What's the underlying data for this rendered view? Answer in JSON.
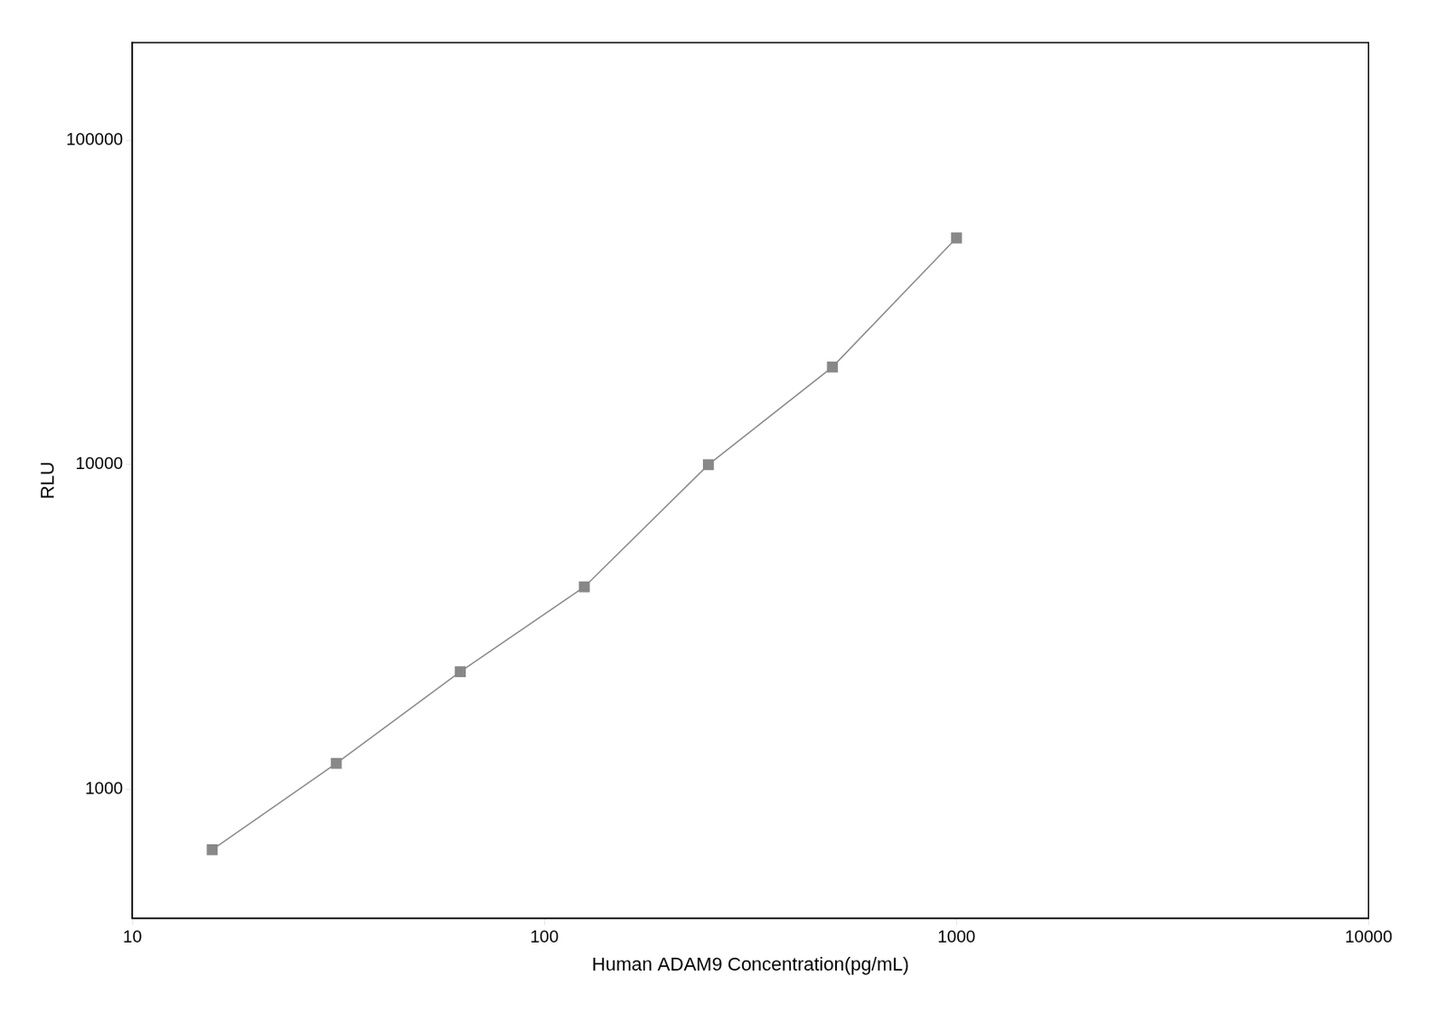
{
  "chart_data": {
    "type": "line",
    "x": [
      15.625,
      31.25,
      62.5,
      125,
      250,
      500,
      1000
    ],
    "values": [
      650,
      1200,
      2300,
      4200,
      10000,
      20000,
      50000
    ],
    "color": "#888888",
    "marker": "square",
    "line_style": "solid",
    "xlabel": "Human ADAM9 Concentration(pg/mL)",
    "ylabel": "RLU",
    "xlim": [
      10,
      10000
    ],
    "ylim": [
      400,
      200000
    ],
    "xticks": [
      10,
      100,
      1000,
      10000
    ],
    "yticks": [
      1000,
      10000,
      100000
    ],
    "log": true,
    "grid": false
  }
}
